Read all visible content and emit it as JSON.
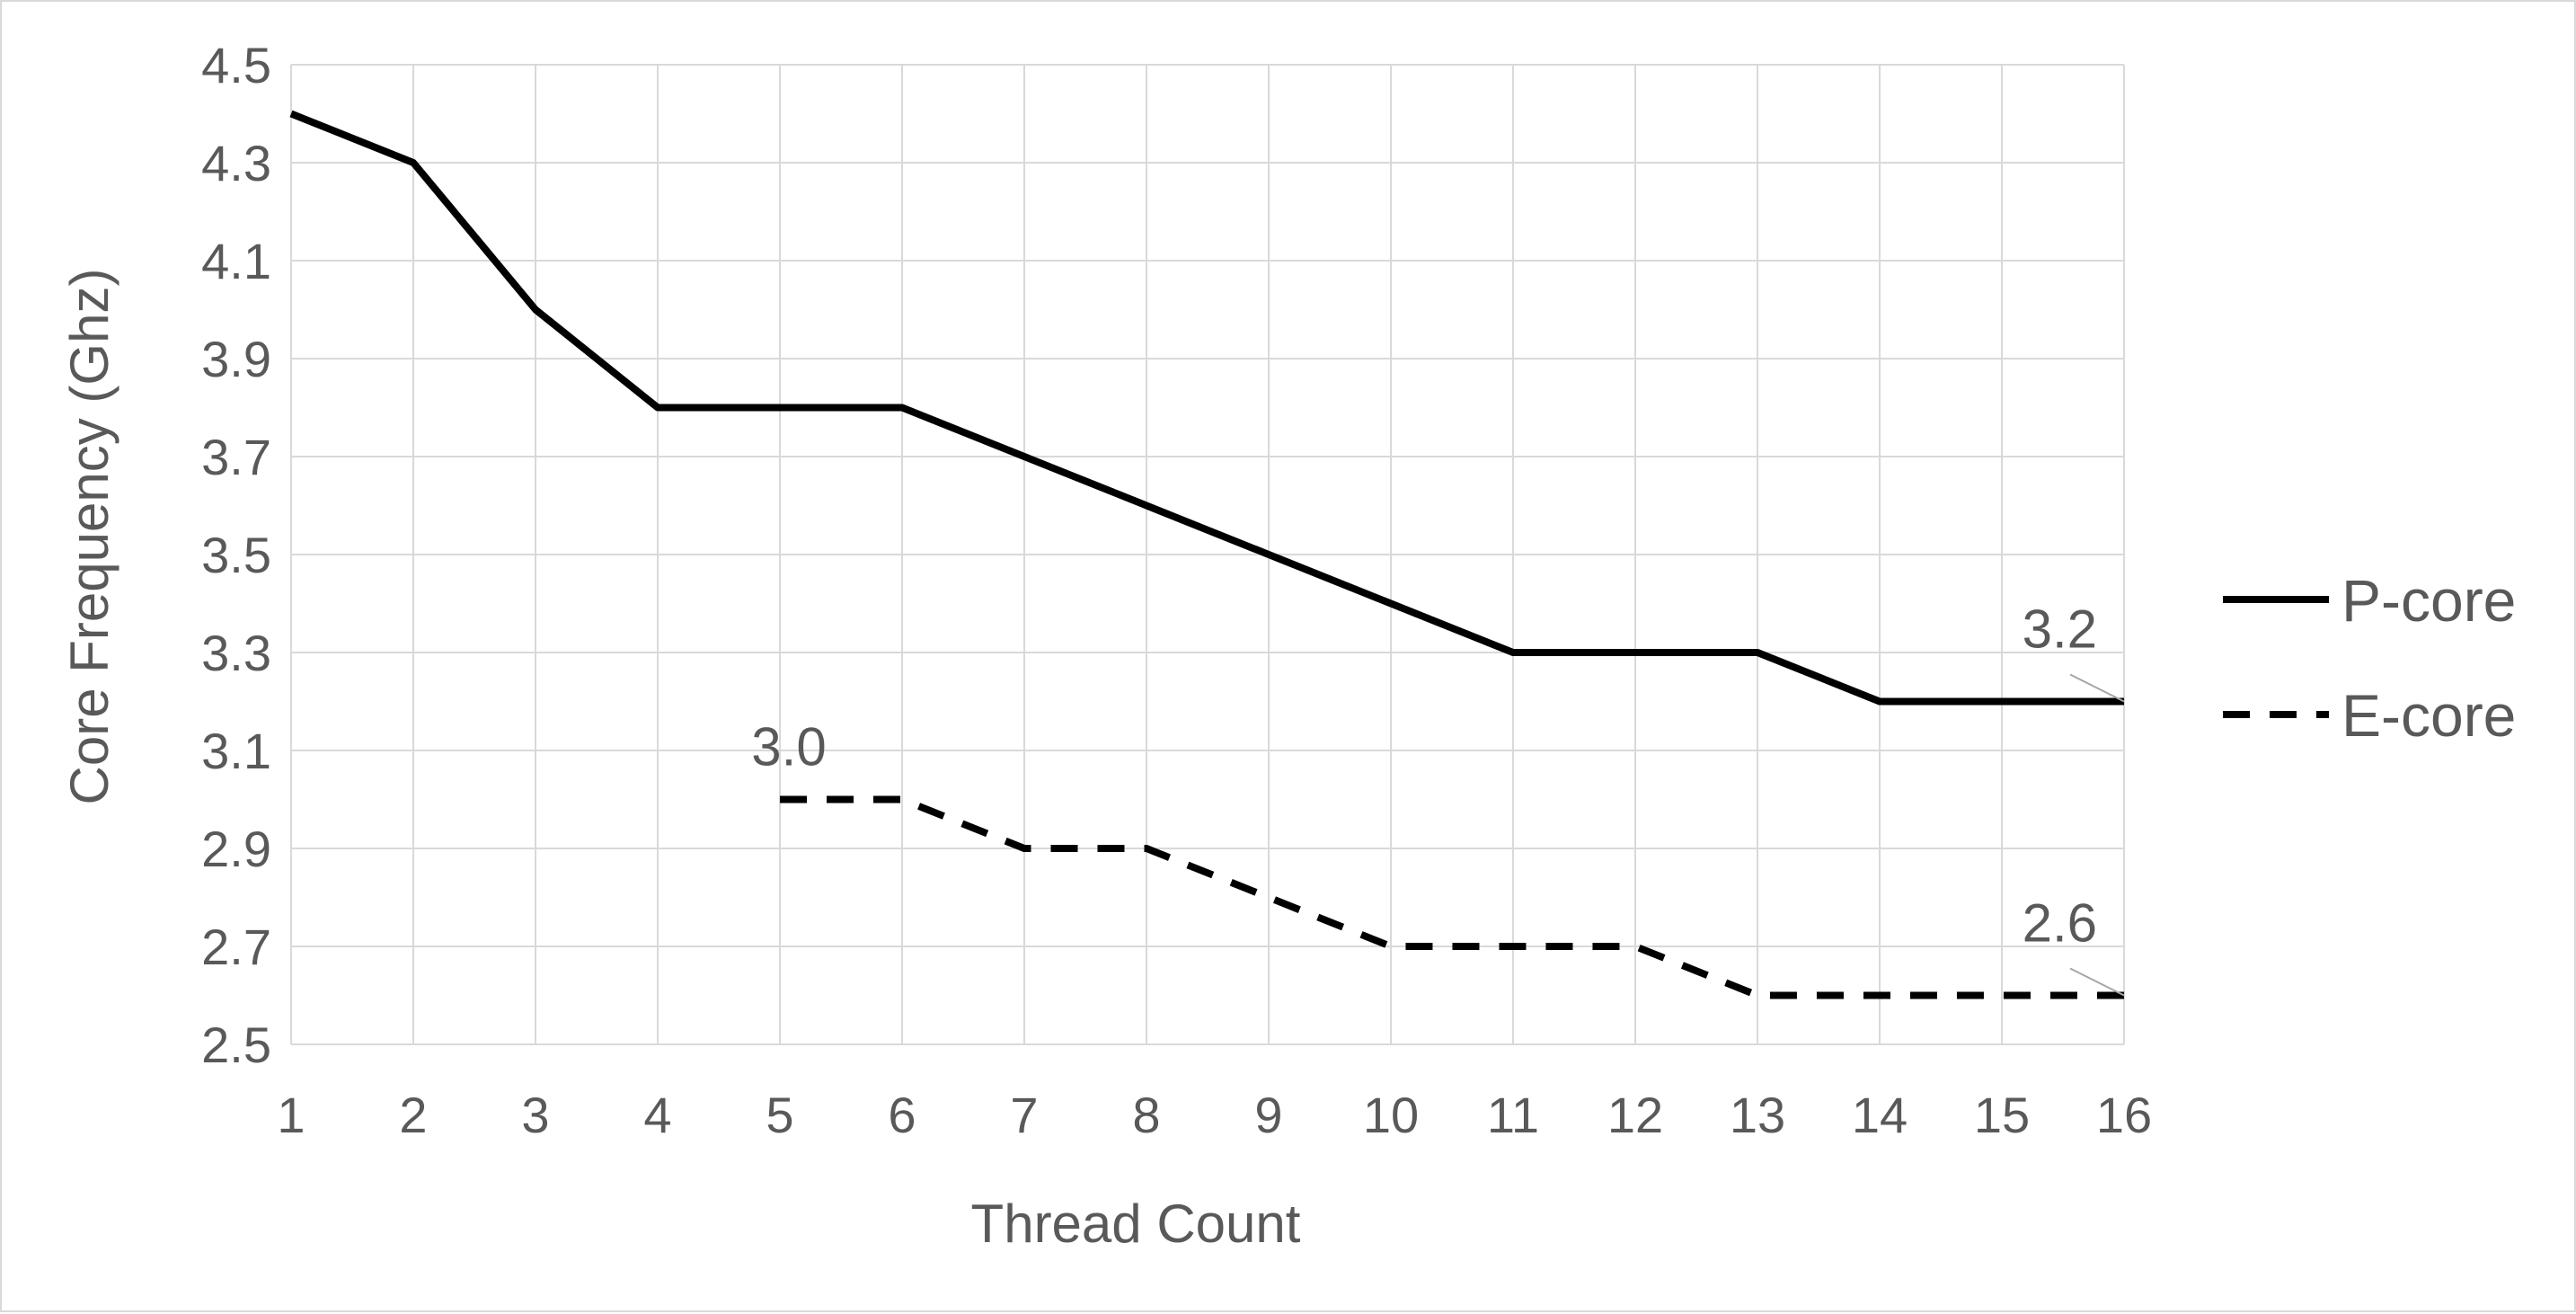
{
  "chart_data": {
    "type": "line",
    "title": "",
    "xlabel": "Thread Count",
    "ylabel": "Core Frequency (Ghz)",
    "x": [
      1,
      2,
      3,
      4,
      5,
      6,
      7,
      8,
      9,
      10,
      11,
      12,
      13,
      14,
      15,
      16
    ],
    "x_tick_labels": [
      "1",
      "2",
      "3",
      "4",
      "5",
      "6",
      "7",
      "8",
      "9",
      "10",
      "11",
      "12",
      "13",
      "14",
      "15",
      "16"
    ],
    "xlim": [
      1,
      16
    ],
    "ylim": [
      2.5,
      4.5
    ],
    "y_ticks": [
      2.5,
      2.7,
      2.9,
      3.1,
      3.3,
      3.5,
      3.7,
      3.9,
      4.1,
      4.3,
      4.5
    ],
    "y_tick_labels": [
      "2.5",
      "2.7",
      "2.9",
      "3.1",
      "3.3",
      "3.5",
      "3.7",
      "3.9",
      "4.1",
      "4.3",
      "4.5"
    ],
    "grid": true,
    "legend_position": "right",
    "series": [
      {
        "name": "P-core",
        "style": "solid",
        "color": "#000000",
        "x": [
          1,
          2,
          3,
          4,
          5,
          6,
          7,
          8,
          9,
          10,
          11,
          12,
          13,
          14,
          15,
          16
        ],
        "values": [
          4.4,
          4.3,
          4.0,
          3.8,
          3.8,
          3.8,
          3.7,
          3.6,
          3.5,
          3.4,
          3.3,
          3.3,
          3.3,
          3.2,
          3.2,
          3.2
        ]
      },
      {
        "name": "E-core",
        "style": "dashed",
        "color": "#000000",
        "x": [
          5,
          6,
          7,
          8,
          9,
          10,
          11,
          12,
          13,
          14,
          15,
          16
        ],
        "values": [
          3.0,
          3.0,
          2.9,
          2.9,
          2.8,
          2.7,
          2.7,
          2.7,
          2.6,
          2.6,
          2.6,
          2.6
        ]
      }
    ],
    "annotations": [
      {
        "text": "3.2",
        "series": "P-core",
        "x": 16,
        "y": 3.2
      },
      {
        "text": "3.0",
        "series": "E-core",
        "x": 5,
        "y": 3.0
      },
      {
        "text": "2.6",
        "series": "E-core",
        "x": 16,
        "y": 2.6
      }
    ],
    "colors": {
      "grid": "#d9d9d9",
      "text": "#595959",
      "leader": "#a6a6a6",
      "border": "#d9d9d9"
    }
  }
}
